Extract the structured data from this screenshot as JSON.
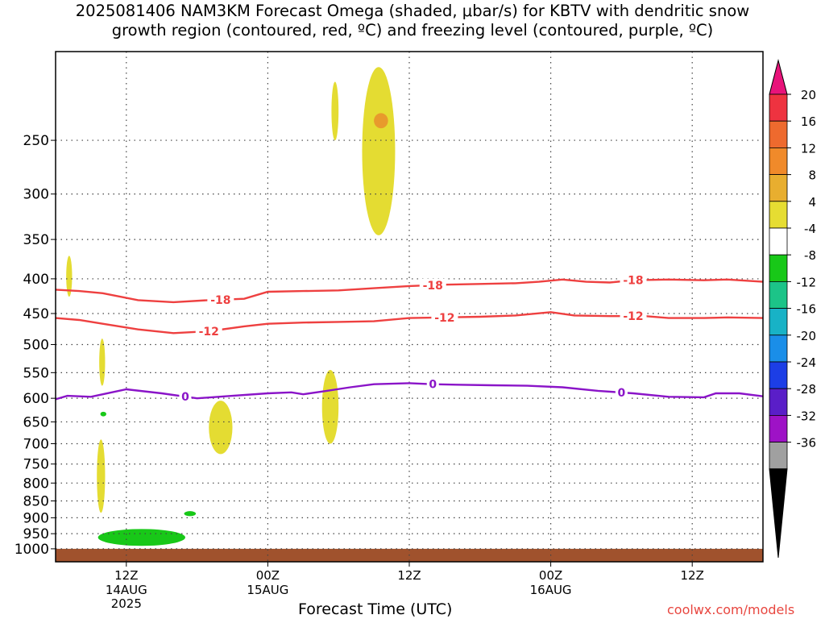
{
  "title": {
    "line1": "2025081406 NAM3KM Forecast Omega (shaded, μbar/s) for KBTV with dendritic snow",
    "line2": "growth region (contoured, red, ºC) and freezing level (contoured, purple, ºC)"
  },
  "credit": "coolwx.com/models",
  "chart_data": {
    "type": "time-height cross section",
    "xlabel": "Forecast Time (UTC)",
    "x_ticks": [
      {
        "hour": 6,
        "label": "12Z",
        "sub": "14AUG",
        "sub2": "2025"
      },
      {
        "hour": 18,
        "label": "00Z",
        "sub": "15AUG",
        "sub2": ""
      },
      {
        "hour": 30,
        "label": "12Z",
        "sub": "",
        "sub2": ""
      },
      {
        "hour": 42,
        "label": "00Z",
        "sub": "16AUG",
        "sub2": ""
      },
      {
        "hour": 54,
        "label": "12Z",
        "sub": "",
        "sub2": ""
      }
    ],
    "x_range_hours": [
      0,
      60
    ],
    "y_axis": "pressure (hPa)",
    "y_ticks": [
      250,
      300,
      350,
      400,
      450,
      500,
      550,
      600,
      650,
      700,
      750,
      800,
      850,
      900,
      950,
      1000
    ],
    "grid": true,
    "colorbar": {
      "labels": [
        "20",
        "16",
        "12",
        "8",
        "4",
        "-4",
        "-8",
        "-12",
        "-16",
        "-20",
        "-24",
        "-28",
        "-32",
        "-36"
      ],
      "colors": [
        "#ee3340",
        "#ee6a2e",
        "#f08a2a",
        "#e8ae2f",
        "#e6dd32",
        "#ffffff",
        "#18c818",
        "#1cc488",
        "#18b2c6",
        "#1a8ee8",
        "#1c3ee6",
        "#5a1ec8",
        "#9e12c6",
        "#a0a0a0"
      ],
      "overflow_top": "#e8137a",
      "underflow_bottom": "#000000"
    },
    "contours": [
      {
        "label": "-18",
        "color": "#ee4040",
        "points": [
          [
            0,
            415
          ],
          [
            2,
            417
          ],
          [
            4,
            420
          ],
          [
            7,
            430
          ],
          [
            10,
            433
          ],
          [
            13,
            430
          ],
          [
            16,
            428
          ],
          [
            18,
            418
          ],
          [
            21,
            417
          ],
          [
            24,
            416
          ],
          [
            27,
            413
          ],
          [
            30,
            410
          ],
          [
            33,
            408
          ],
          [
            36,
            407
          ],
          [
            39,
            406
          ],
          [
            41,
            404
          ],
          [
            43,
            401
          ],
          [
            45,
            404
          ],
          [
            47,
            405
          ],
          [
            49,
            402
          ],
          [
            52,
            401
          ],
          [
            55,
            402
          ],
          [
            57,
            401
          ],
          [
            60,
            404
          ]
        ],
        "label_at_hours": [
          14,
          32,
          49
        ]
      },
      {
        "label": "-12",
        "color": "#ee4040",
        "points": [
          [
            0,
            457
          ],
          [
            2,
            460
          ],
          [
            4,
            466
          ],
          [
            7,
            475
          ],
          [
            10,
            481
          ],
          [
            13,
            478
          ],
          [
            16,
            470
          ],
          [
            18,
            466
          ],
          [
            21,
            464
          ],
          [
            24,
            463
          ],
          [
            27,
            462
          ],
          [
            30,
            457
          ],
          [
            33,
            456
          ],
          [
            36,
            455
          ],
          [
            39,
            453
          ],
          [
            42,
            448
          ],
          [
            44,
            453
          ],
          [
            47,
            454
          ],
          [
            50,
            454
          ],
          [
            52,
            457
          ],
          [
            55,
            457
          ],
          [
            57,
            456
          ],
          [
            60,
            457
          ]
        ],
        "label_at_hours": [
          13,
          33,
          49
        ]
      },
      {
        "label": "0",
        "color": "#8a14c8",
        "points": [
          [
            0,
            602
          ],
          [
            1,
            595
          ],
          [
            3,
            597
          ],
          [
            4,
            592
          ],
          [
            6,
            582
          ],
          [
            9,
            590
          ],
          [
            12,
            600
          ],
          [
            15,
            595
          ],
          [
            18,
            590
          ],
          [
            20,
            588
          ],
          [
            21,
            592
          ],
          [
            23,
            585
          ],
          [
            25,
            578
          ],
          [
            27,
            572
          ],
          [
            30,
            570
          ],
          [
            32,
            572
          ],
          [
            34,
            573
          ],
          [
            37,
            574
          ],
          [
            40,
            575
          ],
          [
            43,
            578
          ],
          [
            46,
            585
          ],
          [
            49,
            590
          ],
          [
            52,
            597
          ],
          [
            55,
            598
          ],
          [
            56,
            590
          ],
          [
            58,
            590
          ],
          [
            60,
            596
          ]
        ],
        "label_at_hours": [
          11,
          32,
          48
        ]
      }
    ],
    "shaded_regions": [
      {
        "band": "4 to 8",
        "hours": [
          26.0,
          28.8
        ],
        "pressure": [
          195,
          345
        ]
      },
      {
        "band": "12 to 16",
        "hours": [
          27.0,
          28.2
        ],
        "pressure": [
          228,
          240
        ]
      },
      {
        "band": "4 to 8",
        "hours": [
          23.4,
          24.0
        ],
        "pressure": [
          205,
          250
        ]
      },
      {
        "band": "4 to 8",
        "hours": [
          0.9,
          1.4
        ],
        "pressure": [
          370,
          425
        ]
      },
      {
        "band": "4 to 8",
        "hours": [
          3.7,
          4.2
        ],
        "pressure": [
          490,
          575
        ]
      },
      {
        "band": "4 to 8",
        "hours": [
          3.5,
          4.2
        ],
        "pressure": [
          690,
          885
        ]
      },
      {
        "band": "4 to 8",
        "hours": [
          13.0,
          15.0
        ],
        "pressure": [
          605,
          725
        ]
      },
      {
        "band": "4 to 8",
        "hours": [
          22.6,
          24.0
        ],
        "pressure": [
          545,
          700
        ]
      },
      {
        "band": "-4 to -8",
        "hours": [
          3.8,
          4.3
        ],
        "pressure": [
          628,
          638
        ]
      },
      {
        "band": "-4 to -8",
        "hours": [
          10.9,
          11.9
        ],
        "pressure": [
          880,
          895
        ]
      },
      {
        "band": "-4 to -8",
        "hours": [
          3.6,
          11.0
        ],
        "pressure": [
          935,
          990
        ]
      }
    ],
    "terrain": {
      "color": "#a0522d",
      "top_pressure": 1000
    }
  }
}
